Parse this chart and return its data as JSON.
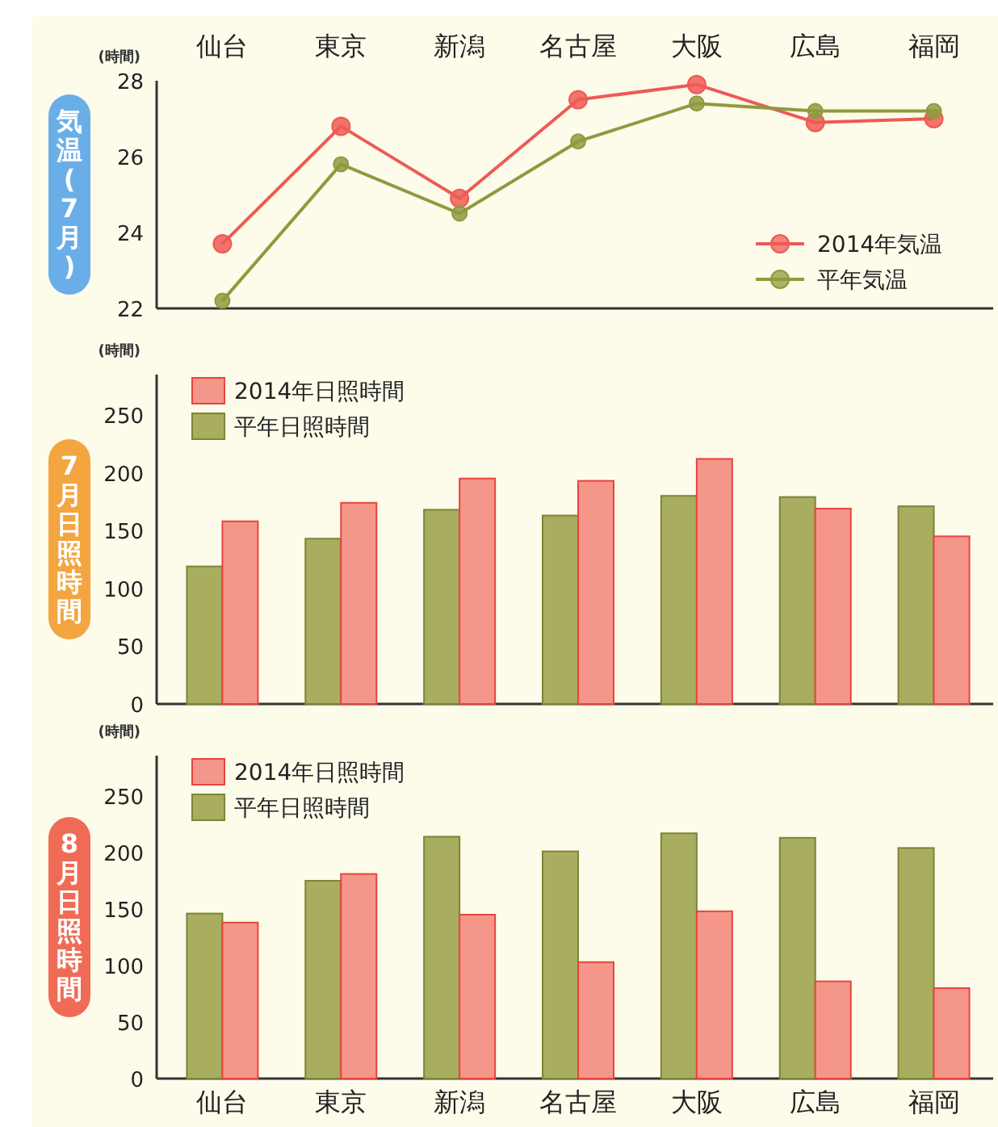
{
  "chart_data": [
    {
      "type": "line",
      "title": "気温(7月)",
      "ylabel": "(時間)",
      "categories": [
        "仙台",
        "東京",
        "新潟",
        "名古屋",
        "大阪",
        "広島",
        "福岡"
      ],
      "ylim": [
        22,
        28
      ],
      "yticks": [
        22,
        24,
        26,
        28
      ],
      "legend": "bottom right",
      "marker": "circle",
      "grid": false,
      "series": [
        {
          "name": "2014年気温",
          "color": "#ee5a55",
          "values": [
            23.7,
            26.8,
            24.9,
            27.5,
            27.9,
            26.9,
            27.0
          ]
        },
        {
          "name": "平年気温",
          "color": "#8f9a3e",
          "values": [
            22.2,
            25.8,
            24.5,
            26.4,
            27.4,
            27.2,
            27.2
          ]
        }
      ]
    },
    {
      "type": "bar",
      "title": "7月日照時間",
      "ylabel": "(時間)",
      "categories": [
        null,
        null,
        null,
        null,
        null,
        null,
        null
      ],
      "ylim": [
        0,
        250
      ],
      "yticks": [
        0,
        50,
        100,
        150,
        200,
        250
      ],
      "legend": "top left",
      "grid": false,
      "tick_labels": "y",
      "series": [
        {
          "name": "平年日照時間",
          "color": "#a9ad5f",
          "values": [
            119,
            143,
            168,
            163,
            180,
            179,
            171
          ]
        },
        {
          "name": "2014年日照時間",
          "color": "#f4978a",
          "values": [
            158,
            174,
            195,
            193,
            212,
            169,
            145
          ]
        }
      ]
    },
    {
      "type": "bar",
      "title": "8月日照時間",
      "ylabel": "(時間)",
      "categories": [
        "仙台",
        "東京",
        "新潟",
        "名古屋",
        "大阪",
        "広島",
        "福岡"
      ],
      "ylim": [
        0,
        250
      ],
      "yticks": [
        0,
        50,
        100,
        150,
        200,
        250
      ],
      "legend": "top left",
      "grid": false,
      "series": [
        {
          "name": "平年日照時間",
          "color": "#a9ad5f",
          "values": [
            146,
            175,
            214,
            201,
            217,
            213,
            204
          ]
        },
        {
          "name": "2014年日照時間",
          "color": "#f4978a",
          "values": [
            138,
            181,
            145,
            103,
            148,
            86,
            80
          ]
        }
      ]
    }
  ]
}
